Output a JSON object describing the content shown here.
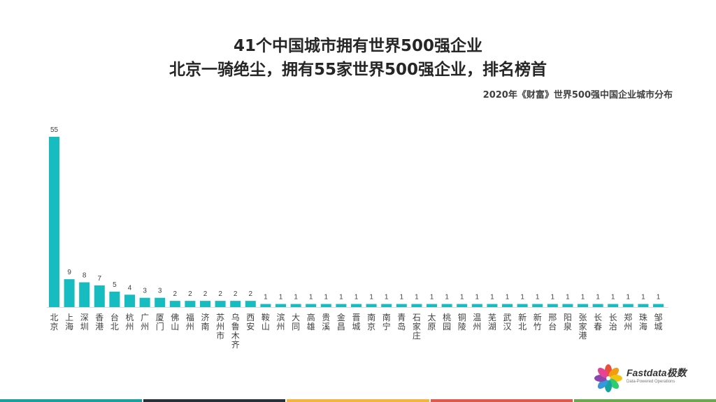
{
  "header": {
    "title_line1": "41个中国城市拥有世界500强企业",
    "title_line2": "北京一骑绝尘，拥有55家世界500强企业，排名榜首",
    "subtitle": "2020年《财富》世界500强中国企业城市分布"
  },
  "logo": {
    "name": "Fastdata极数",
    "tagline": "Data-Powered Operations"
  },
  "colors": {
    "bar": "#16bcc0",
    "bottom_bar": [
      "#16a39f",
      "#263238",
      "#f2b63c",
      "#e05a4b",
      "#6aa84f"
    ]
  },
  "chart_data": {
    "type": "bar",
    "title": "41个中国城市拥有世界500强企业",
    "subtitle": "2020年《财富》世界500强中国企业城市分布",
    "categories": [
      "北京",
      "上海",
      "深圳",
      "香港",
      "台北",
      "杭州",
      "广州",
      "厦门",
      "佛山",
      "福州",
      "济南",
      "苏州市",
      "乌鲁木齐",
      "西安",
      "鞍山",
      "滨州",
      "大同",
      "高雄",
      "贵溪",
      "金昌",
      "晋城",
      "南京",
      "南宁",
      "青岛",
      "石家庄",
      "太原",
      "桃园",
      "铜陵",
      "温州",
      "芜湖",
      "武汉",
      "新北",
      "新竹",
      "邢台",
      "阳泉",
      "张家港",
      "长春",
      "长治",
      "郑州",
      "珠海",
      "邹城"
    ],
    "values": [
      55,
      9,
      8,
      7,
      5,
      4,
      3,
      3,
      2,
      2,
      2,
      2,
      2,
      2,
      1,
      1,
      1,
      1,
      1,
      1,
      1,
      1,
      1,
      1,
      1,
      1,
      1,
      1,
      1,
      1,
      1,
      1,
      1,
      1,
      1,
      1,
      1,
      1,
      1,
      1,
      1
    ],
    "ylim": [
      0,
      55
    ],
    "grid": false,
    "legend": "none",
    "data_labels": true
  }
}
